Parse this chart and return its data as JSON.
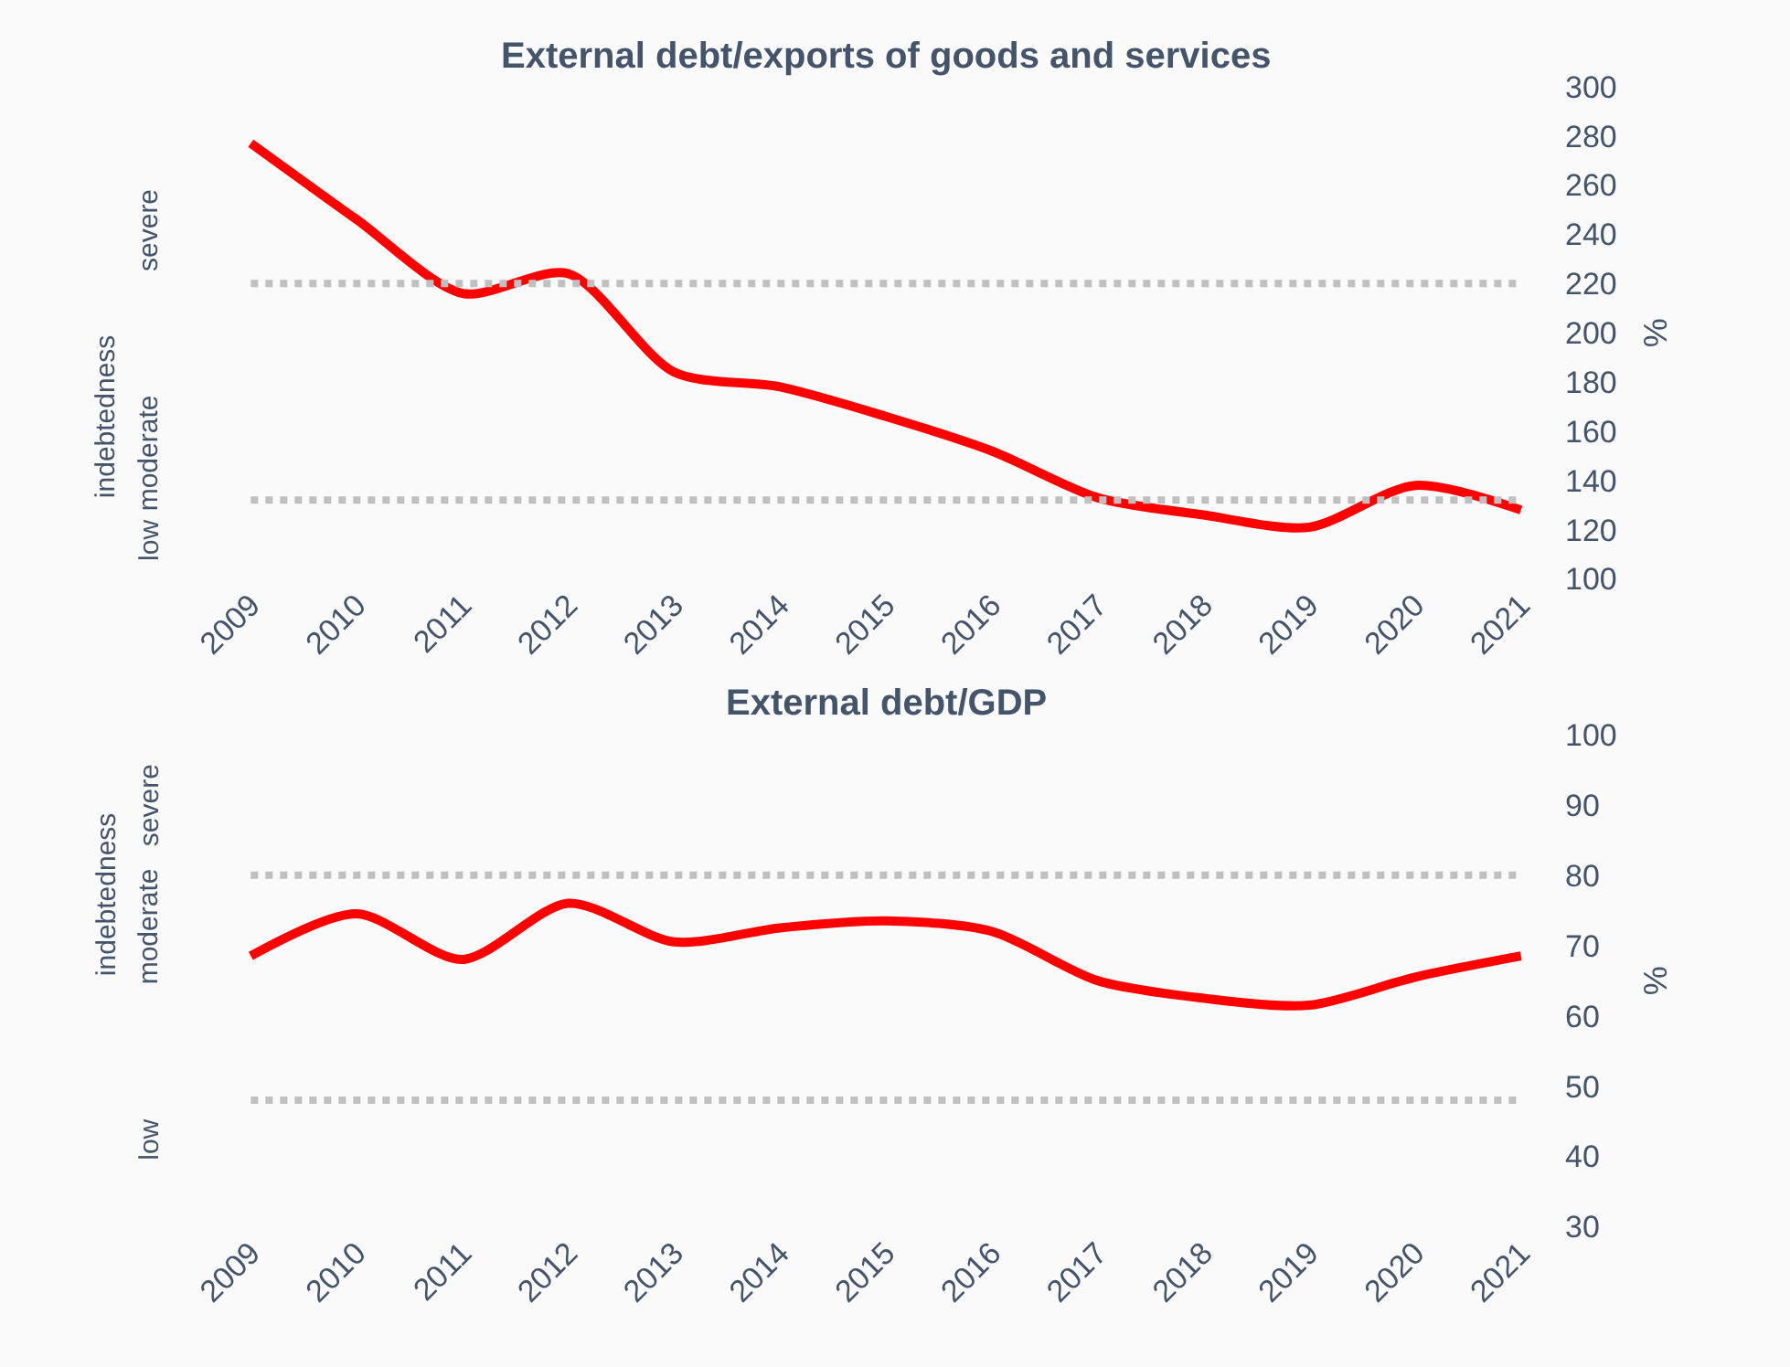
{
  "chart_data": [
    {
      "type": "line",
      "title": "External debt/exports of goods and services",
      "y2label": "%",
      "categories": [
        "2009",
        "2010",
        "2011",
        "2012",
        "2013",
        "2014",
        "2015",
        "2016",
        "2017",
        "2018",
        "2019",
        "2020",
        "2021"
      ],
      "series": [
        {
          "color": "#ff0000",
          "axis": "y2",
          "values": [
            277,
            246,
            216,
            224,
            184,
            178,
            166,
            152,
            133,
            126,
            121,
            138,
            128
          ]
        }
      ],
      "y2lim": [
        100,
        300
      ],
      "y2ticks": [
        100,
        120,
        140,
        160,
        180,
        200,
        220,
        240,
        260,
        280,
        300
      ],
      "ref_lines": [
        {
          "axis": "y2",
          "value": 220,
          "color": "#c0c0c0",
          "line_style": "dotted"
        },
        {
          "axis": "y2",
          "value": 132,
          "color": "#c0c0c0",
          "line_style": "dotted"
        }
      ],
      "annotations": [
        "indebtedness",
        "severe",
        "moderate",
        "low"
      ],
      "marker": "none",
      "line_style": "solid"
    },
    {
      "type": "line",
      "title": "External debt/GDP",
      "y2label": "%",
      "categories": [
        "2009",
        "2010",
        "2011",
        "2012",
        "2013",
        "2014",
        "2015",
        "2016",
        "2017",
        "2018",
        "2019",
        "2020",
        "2021"
      ],
      "series": [
        {
          "color": "#ff0000",
          "axis": "y2",
          "values": [
            68.5,
            74.5,
            68,
            76,
            70.5,
            72.5,
            73.5,
            72,
            65,
            62.5,
            61.5,
            65.5,
            68.5
          ]
        }
      ],
      "y2lim": [
        30,
        100
      ],
      "y2ticks": [
        30,
        40,
        50,
        60,
        70,
        80,
        90,
        100
      ],
      "ref_lines": [
        {
          "axis": "y2",
          "value": 80,
          "color": "#c0c0c0",
          "line_style": "dotted"
        },
        {
          "axis": "y2",
          "value": 48,
          "color": "#c0c0c0",
          "line_style": "dotted"
        }
      ],
      "annotations": [
        "indebtedness",
        "severe",
        "moderate",
        "low"
      ],
      "marker": "none",
      "line_style": "solid"
    }
  ]
}
